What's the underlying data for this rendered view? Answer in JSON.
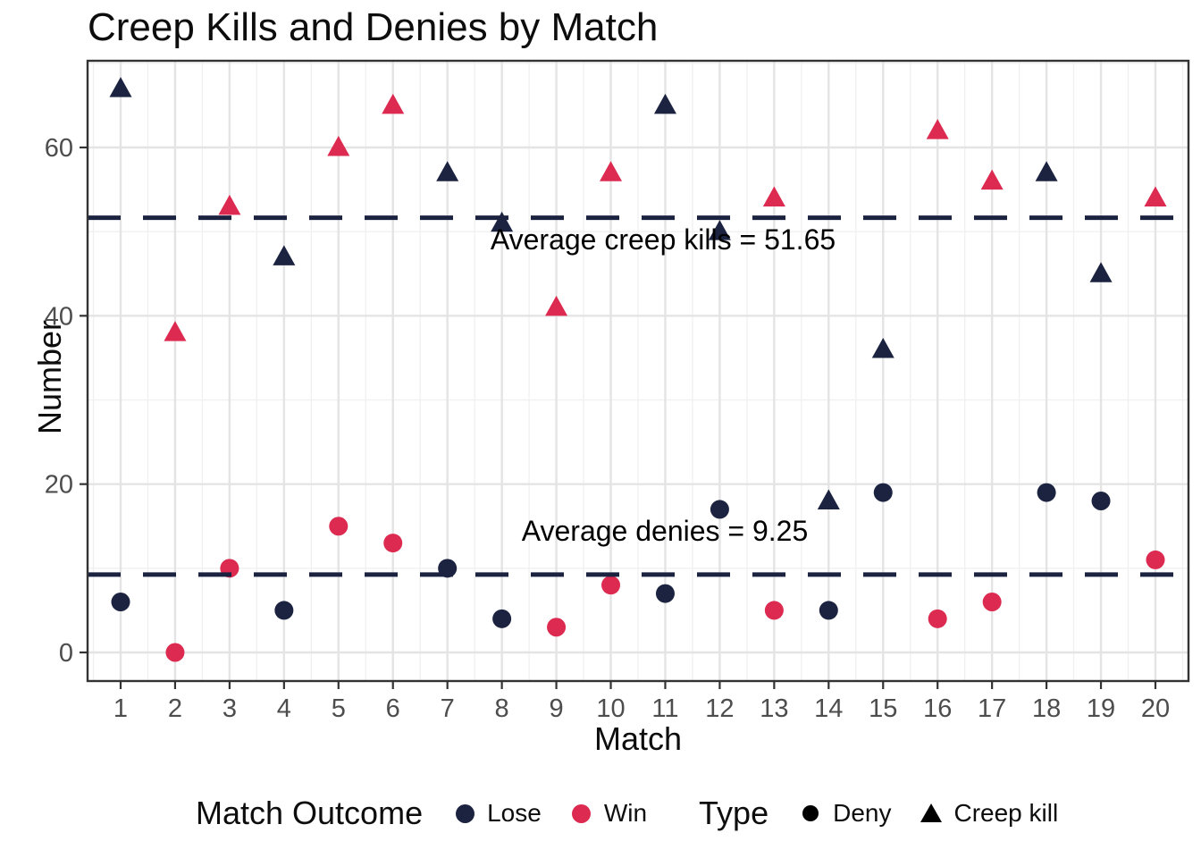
{
  "title": "Creep Kills and Denies by Match",
  "annotations": {
    "creep_kills": "Average creep kills = 51.65",
    "denies": "Average denies = 9.25"
  },
  "legend": {
    "outcome": {
      "title": "Match Outcome",
      "items": [
        {
          "label": "Lose",
          "color": "#1c2340"
        },
        {
          "label": "Win",
          "color": "#dc2a50"
        }
      ]
    },
    "type": {
      "title": "Type",
      "items": [
        {
          "label": "Deny",
          "shape": "circle"
        },
        {
          "label": "Creep kill",
          "shape": "triangle"
        }
      ]
    }
  },
  "colors": {
    "lose": "#1c2340",
    "win": "#dc2a50",
    "hline": "#1c2340",
    "grid_major": "#e4e4e4",
    "grid_minor": "#f0f0f0",
    "panel_border": "#333333",
    "tick_text": "#4d4d4d",
    "background": "#ffffff"
  },
  "chart_data": {
    "type": "scatter",
    "title": "Creep Kills and Denies by Match",
    "xlabel": "Match",
    "ylabel": "Number",
    "x": [
      1,
      2,
      3,
      4,
      5,
      6,
      7,
      8,
      9,
      10,
      11,
      12,
      13,
      14,
      15,
      16,
      17,
      18,
      19,
      20
    ],
    "xticks": [
      1,
      2,
      3,
      4,
      5,
      6,
      7,
      8,
      9,
      10,
      11,
      12,
      13,
      14,
      15,
      16,
      17,
      18,
      19,
      20
    ],
    "yticks": [
      0,
      20,
      40,
      60
    ],
    "yticks_minor": [
      10,
      30,
      50,
      70
    ],
    "xlim": [
      0.4,
      20.6
    ],
    "ylim": [
      -3.4,
      70.4
    ],
    "grid": "major-and-minor",
    "legend_position": "bottom",
    "series": [
      {
        "name": "Creep kill",
        "shape": "triangle",
        "values": [
          67,
          38,
          53,
          47,
          60,
          65,
          57,
          51,
          41,
          57,
          65,
          50,
          54,
          18,
          36,
          62,
          56,
          57,
          45,
          54
        ]
      },
      {
        "name": "Deny",
        "shape": "circle",
        "values": [
          6,
          0,
          10,
          5,
          15,
          13,
          10,
          4,
          3,
          8,
          7,
          17,
          5,
          5,
          19,
          4,
          6,
          19,
          18,
          11
        ]
      }
    ],
    "point_outcomes": [
      "Lose",
      "Win",
      "Win",
      "Lose",
      "Win",
      "Win",
      "Lose",
      "Lose",
      "Win",
      "Win",
      "Lose",
      "Lose",
      "Win",
      "Lose",
      "Lose",
      "Win",
      "Win",
      "Lose",
      "Lose",
      "Win"
    ],
    "outcome_colors": {
      "Lose": "#1c2340",
      "Win": "#dc2a50"
    },
    "hlines": [
      {
        "y": 51.65,
        "label": "Average creep kills = 51.65"
      },
      {
        "y": 9.25,
        "label": "Average denies = 9.25"
      }
    ]
  }
}
